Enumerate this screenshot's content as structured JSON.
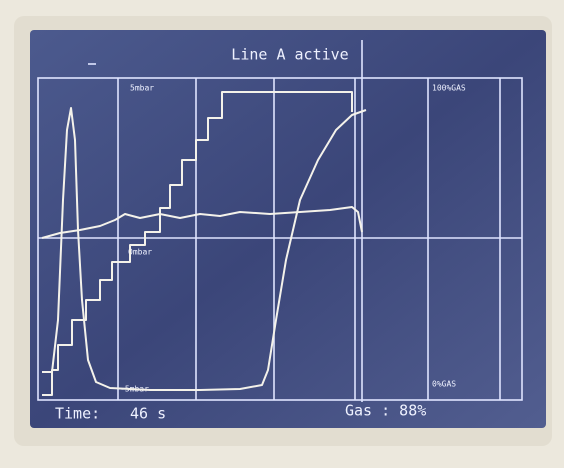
{
  "header": {
    "title": "Line A active"
  },
  "plot": {
    "labels": {
      "pressure_top": "5mbar",
      "pressure_mid": "0mbar",
      "pressure_bottom": "-5mbar",
      "gas_top": "100%GAS",
      "gas_bottom": "0%GAS"
    }
  },
  "status": {
    "time_label": "Time:",
    "time_value": "46 s",
    "gas": "Gas : 88%"
  }
}
